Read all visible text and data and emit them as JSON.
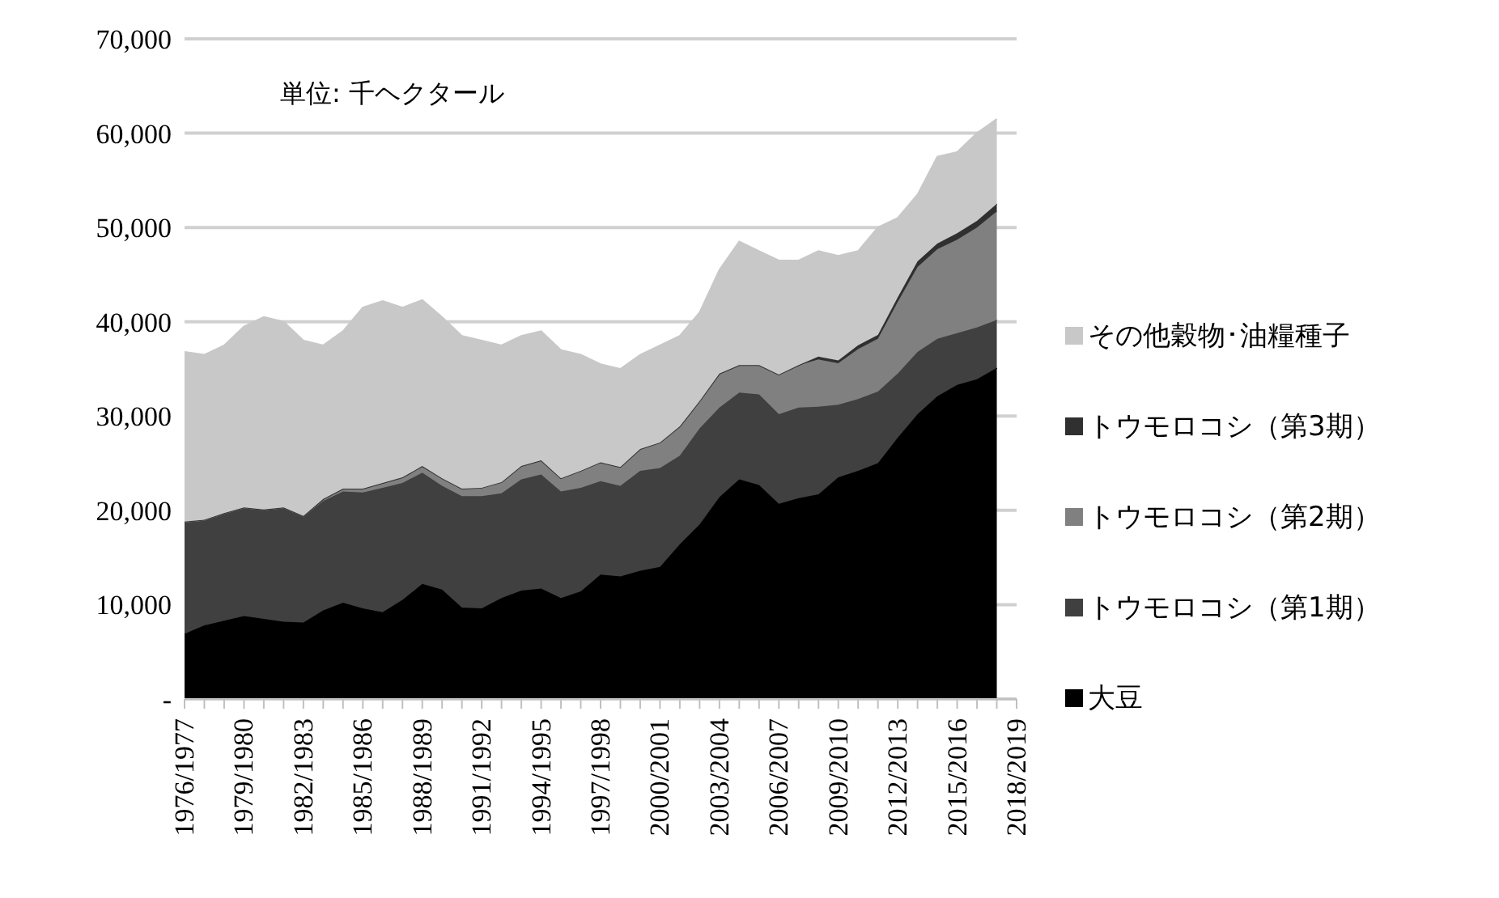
{
  "chart_data": {
    "type": "area",
    "stacked": true,
    "categories": [
      "1976/1977",
      null,
      null,
      "1979/1980",
      null,
      null,
      "1982/1983",
      null,
      null,
      "1985/1986",
      null,
      null,
      "1988/1989",
      null,
      null,
      "1991/1992",
      null,
      null,
      "1994/1995",
      null,
      null,
      "1997/1998",
      null,
      null,
      "2000/2001",
      null,
      null,
      "2003/2004",
      null,
      null,
      "2006/2007",
      null,
      null,
      "2009/2010",
      null,
      null,
      "2012/2013",
      null,
      null,
      "2015/2016",
      null,
      null,
      "2018/2019"
    ],
    "series": [
      {
        "name": "大豆",
        "color": "#000000",
        "values": [
          6900,
          7800,
          8300,
          8800,
          8500,
          8200,
          8100,
          9400,
          10200,
          9600,
          9200,
          10500,
          12200,
          11600,
          9700,
          9600,
          10700,
          11500,
          11700,
          10700,
          11400,
          13200,
          13000,
          13600,
          14000,
          16400,
          18500,
          21400,
          23300,
          22700,
          20700,
          21300,
          21700,
          23500,
          24200,
          25000,
          27700,
          30200,
          32100,
          33300,
          33900,
          35100,
          null
        ]
      },
      {
        "name": "トウモロコシ（第1期）",
        "color": "#404040",
        "values": [
          11800,
          11100,
          11300,
          11400,
          11500,
          12000,
          11200,
          11600,
          11800,
          12300,
          13200,
          12400,
          11800,
          11000,
          11800,
          11900,
          11100,
          11800,
          12100,
          11300,
          11000,
          9900,
          9600,
          10600,
          10500,
          9400,
          10200,
          9500,
          9200,
          9600,
          9500,
          9600,
          9300,
          7700,
          7600,
          7600,
          6800,
          6600,
          6100,
          5500,
          5500,
          5100,
          null
        ]
      },
      {
        "name": "トウモロコシ（第2期）",
        "color": "#808080",
        "values": [
          100,
          100,
          100,
          100,
          100,
          100,
          100,
          200,
          300,
          400,
          500,
          600,
          700,
          800,
          800,
          900,
          1200,
          1400,
          1500,
          1400,
          1800,
          2000,
          2000,
          2300,
          2700,
          3100,
          2900,
          3600,
          2900,
          3100,
          4200,
          4500,
          5000,
          4400,
          5300,
          5600,
          7600,
          9000,
          9500,
          9900,
          10600,
          11500,
          null
        ]
      },
      {
        "name": "トウモロコシ（第3期）",
        "color": "#303030",
        "values": [
          0,
          0,
          0,
          0,
          0,
          0,
          0,
          0,
          0,
          0,
          0,
          0,
          0,
          0,
          0,
          0,
          0,
          0,
          0,
          0,
          0,
          0,
          0,
          0,
          0,
          0,
          0,
          0,
          0,
          0,
          0,
          0,
          300,
          300,
          400,
          400,
          500,
          600,
          600,
          700,
          700,
          800,
          null
        ]
      },
      {
        "name": "その他穀物･油糧種子",
        "color": "#c8c8c8",
        "values": [
          18000,
          17500,
          17800,
          19200,
          20400,
          19700,
          18600,
          16300,
          16700,
          19200,
          19300,
          18000,
          17600,
          17100,
          16200,
          15600,
          14500,
          13800,
          13700,
          13600,
          12300,
          10400,
          10400,
          10000,
          10300,
          9600,
          9400,
          11000,
          13100,
          12100,
          12100,
          11100,
          11200,
          11100,
          10000,
          11400,
          8400,
          7100,
          9200,
          8600,
          9300,
          9000,
          null
        ]
      }
    ],
    "ylim": [
      0,
      70000
    ],
    "yticks": [
      {
        "value": 0,
        "label": "-"
      },
      {
        "value": 10000,
        "label": "10,000"
      },
      {
        "value": 20000,
        "label": "20,000"
      },
      {
        "value": 30000,
        "label": "30,000"
      },
      {
        "value": 40000,
        "label": "40,000"
      },
      {
        "value": 50000,
        "label": "50,000"
      },
      {
        "value": 60000,
        "label": "60,000"
      },
      {
        "value": 70000,
        "label": "70,000"
      }
    ],
    "grid": "y",
    "legend": "right",
    "annotations": [
      "単位: 千ヘクタール"
    ]
  }
}
